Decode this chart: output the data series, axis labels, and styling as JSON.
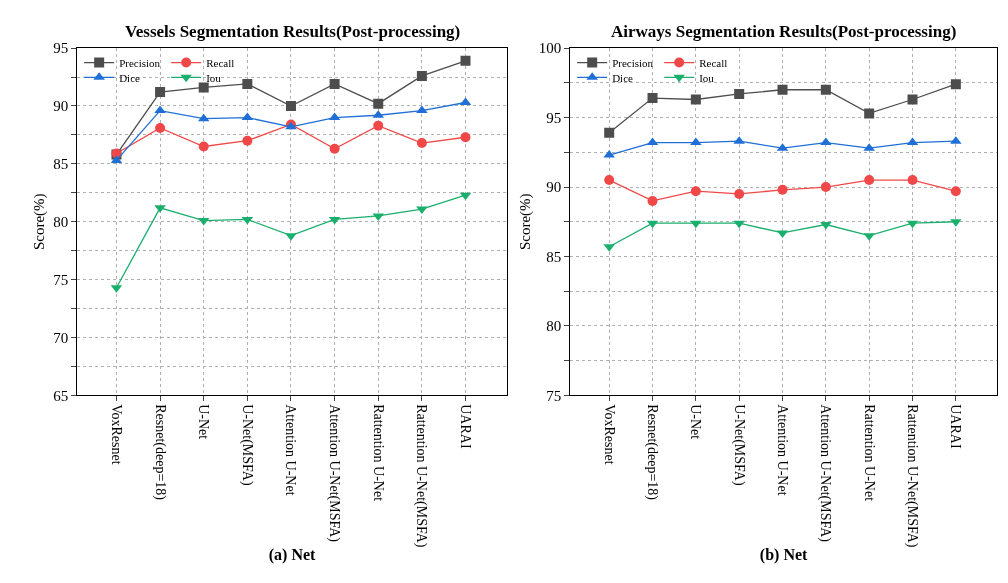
{
  "chart_data": [
    {
      "type": "line",
      "title": "Vessels Segmentation Results(Post-processing)",
      "xlabel": "(a) Net",
      "ylabel": "Score(%)",
      "categories": [
        "VoxResnet",
        "Resnet(deep=18)",
        "U-Net",
        "U-Net(MSFA)",
        "Attention U-Net",
        "Attention U-Net(MSFA)",
        "Rattention U-Net",
        "Rattention U-Net(MSFA)",
        "UARAI"
      ],
      "series": [
        {
          "name": "Precision",
          "color": "#4d4d4d",
          "marker": "square",
          "values": [
            85.8,
            91.2,
            91.6,
            91.9,
            90.0,
            91.9,
            90.2,
            92.6,
            93.9
          ]
        },
        {
          "name": "Recall",
          "color": "#f04848",
          "marker": "circle",
          "values": [
            85.9,
            88.1,
            86.5,
            87.0,
            88.4,
            86.3,
            88.3,
            86.8,
            87.3
          ]
        },
        {
          "name": "Dice",
          "color": "#1f6fd6",
          "marker": "triangle",
          "values": [
            85.3,
            89.6,
            88.9,
            89.0,
            88.2,
            89.0,
            89.2,
            89.6,
            90.3
          ]
        },
        {
          "name": "Iou",
          "color": "#1aaf6c",
          "marker": "triangle-down",
          "values": [
            74.3,
            81.2,
            80.1,
            80.2,
            78.8,
            80.2,
            80.5,
            81.1,
            82.3
          ]
        }
      ],
      "ylim": [
        65,
        95
      ],
      "yticks": [
        65,
        {
          "value": 67.5,
          "label": null
        },
        70,
        {
          "value": 72.5,
          "label": null
        },
        75,
        {
          "value": 77.5,
          "label": null
        },
        80,
        {
          "value": 82.5,
          "label": null
        },
        85,
        {
          "value": 87.5,
          "label": null
        },
        90,
        {
          "value": 92.5,
          "label": null
        },
        95
      ],
      "grid": true,
      "legend": "top left",
      "line_style": "solid"
    },
    {
      "type": "line",
      "title": "Airways Segmentation Results(Post-processing)",
      "xlabel": "(b) Net",
      "ylabel": "Score(%)",
      "categories": [
        "VoxResnet",
        "Resnet(deep=18)",
        "U-Net",
        "U-Net(MSFA)",
        "Attention U-Net",
        "Attention U-Net(MSFA)",
        "Rattention U-Net",
        "Rattention U-Net(MSFA)",
        "UARAI"
      ],
      "series": [
        {
          "name": "Precision",
          "color": "#4d4d4d",
          "marker": "square",
          "values": [
            93.9,
            96.4,
            96.3,
            96.7,
            97.0,
            97.0,
            95.3,
            96.3,
            97.4
          ]
        },
        {
          "name": "Recall",
          "color": "#f04848",
          "marker": "circle",
          "values": [
            90.5,
            89.0,
            89.7,
            89.5,
            89.8,
            90.0,
            90.5,
            90.5,
            89.7
          ]
        },
        {
          "name": "Dice",
          "color": "#1f6fd6",
          "marker": "triangle",
          "values": [
            92.3,
            93.2,
            93.2,
            93.3,
            92.8,
            93.2,
            92.8,
            93.2,
            93.3
          ]
        },
        {
          "name": "Iou",
          "color": "#1aaf6c",
          "marker": "triangle-down",
          "values": [
            85.7,
            87.4,
            87.4,
            87.4,
            86.7,
            87.3,
            86.5,
            87.4,
            87.5
          ]
        }
      ],
      "ylim": [
        75,
        100
      ],
      "yticks": [
        75,
        {
          "value": 77.5,
          "label": null
        },
        80,
        {
          "value": 82.5,
          "label": null
        },
        85,
        {
          "value": 87.5,
          "label": null
        },
        90,
        {
          "value": 92.5,
          "label": null
        },
        95,
        {
          "value": 97.5,
          "label": null
        },
        100
      ],
      "grid": true,
      "legend": "top left",
      "line_style": "solid"
    }
  ]
}
